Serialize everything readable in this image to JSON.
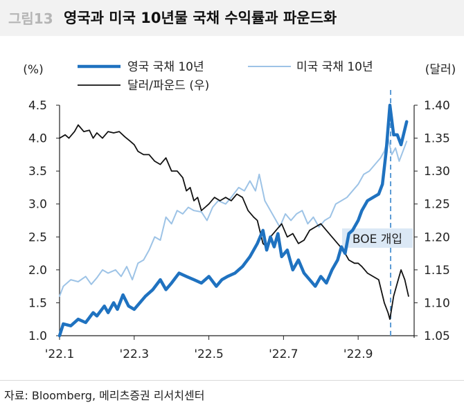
{
  "header": {
    "figure_label": "그림13",
    "title": "영국과 미국 10년물 국채 수익률과 파운드화"
  },
  "source": "자료: Bloomberg, 메리츠증권 리서치센터",
  "colors": {
    "uk": "#1f72c0",
    "us": "#9dc3e6",
    "gbp": "#111111",
    "marker": "#5b9bd5",
    "annot_bg": "#dbe8f5"
  },
  "chart_data": {
    "type": "line",
    "title": "영국과 미국 10년물 국채 수익률과 파운드화",
    "left_axis": {
      "label": "(%)",
      "range": [
        1.0,
        4.5
      ],
      "ticks": [
        "1.0",
        "1.5",
        "2.0",
        "2.5",
        "3.0",
        "3.5",
        "4.0",
        "4.5"
      ]
    },
    "right_axis": {
      "label": "(달러)",
      "range": [
        1.05,
        1.4
      ],
      "ticks": [
        "1.05",
        "1.10",
        "1.15",
        "1.20",
        "1.25",
        "1.30",
        "1.35",
        "1.40"
      ]
    },
    "x_axis": {
      "range": [
        0,
        9.5
      ],
      "ticks": [
        {
          "value": 0,
          "label": "'22.1"
        },
        {
          "value": 2,
          "label": "'22.3"
        },
        {
          "value": 4,
          "label": "'22.5"
        },
        {
          "value": 6,
          "label": "'22.7"
        },
        {
          "value": 8,
          "label": "'22.9"
        }
      ]
    },
    "annotation": {
      "label": "BOE 개입",
      "x": 8.87
    },
    "series": [
      {
        "name": "영국 국채 10년",
        "axis": "left",
        "style": "thick",
        "points": [
          [
            0,
            1.0
          ],
          [
            0.1,
            1.18
          ],
          [
            0.3,
            1.15
          ],
          [
            0.5,
            1.25
          ],
          [
            0.7,
            1.2
          ],
          [
            0.9,
            1.35
          ],
          [
            1.0,
            1.3
          ],
          [
            1.2,
            1.45
          ],
          [
            1.3,
            1.35
          ],
          [
            1.45,
            1.5
          ],
          [
            1.55,
            1.4
          ],
          [
            1.7,
            1.62
          ],
          [
            1.85,
            1.45
          ],
          [
            2.0,
            1.4
          ],
          [
            2.15,
            1.5
          ],
          [
            2.3,
            1.6
          ],
          [
            2.5,
            1.7
          ],
          [
            2.7,
            1.85
          ],
          [
            2.85,
            1.7
          ],
          [
            3.0,
            1.8
          ],
          [
            3.2,
            1.95
          ],
          [
            3.4,
            1.9
          ],
          [
            3.6,
            1.85
          ],
          [
            3.8,
            1.8
          ],
          [
            4.0,
            1.9
          ],
          [
            4.2,
            1.75
          ],
          [
            4.35,
            1.85
          ],
          [
            4.5,
            1.9
          ],
          [
            4.7,
            1.95
          ],
          [
            4.9,
            2.05
          ],
          [
            5.1,
            2.2
          ],
          [
            5.3,
            2.4
          ],
          [
            5.45,
            2.6
          ],
          [
            5.55,
            2.3
          ],
          [
            5.65,
            2.5
          ],
          [
            5.75,
            2.35
          ],
          [
            5.85,
            2.55
          ],
          [
            5.95,
            2.2
          ],
          [
            6.1,
            2.3
          ],
          [
            6.25,
            2.0
          ],
          [
            6.4,
            2.15
          ],
          [
            6.55,
            1.95
          ],
          [
            6.7,
            1.85
          ],
          [
            6.85,
            1.75
          ],
          [
            7.0,
            1.9
          ],
          [
            7.15,
            1.8
          ],
          [
            7.3,
            2.0
          ],
          [
            7.45,
            2.15
          ],
          [
            7.55,
            2.35
          ],
          [
            7.65,
            2.25
          ],
          [
            7.75,
            2.55
          ],
          [
            7.85,
            2.6
          ],
          [
            8.0,
            2.75
          ],
          [
            8.1,
            2.9
          ],
          [
            8.25,
            3.05
          ],
          [
            8.4,
            3.1
          ],
          [
            8.55,
            3.15
          ],
          [
            8.65,
            3.3
          ],
          [
            8.75,
            3.8
          ],
          [
            8.85,
            4.5
          ],
          [
            8.95,
            4.05
          ],
          [
            9.05,
            4.05
          ],
          [
            9.15,
            3.9
          ],
          [
            9.3,
            4.25
          ]
        ]
      },
      {
        "name": "미국 국채 10년",
        "axis": "left",
        "style": "thin",
        "points": [
          [
            0,
            1.6
          ],
          [
            0.1,
            1.75
          ],
          [
            0.3,
            1.85
          ],
          [
            0.5,
            1.82
          ],
          [
            0.7,
            1.9
          ],
          [
            0.85,
            1.78
          ],
          [
            1.0,
            1.88
          ],
          [
            1.15,
            2.0
          ],
          [
            1.3,
            1.95
          ],
          [
            1.5,
            2.0
          ],
          [
            1.65,
            1.9
          ],
          [
            1.8,
            2.05
          ],
          [
            1.95,
            1.85
          ],
          [
            2.1,
            2.1
          ],
          [
            2.25,
            2.15
          ],
          [
            2.4,
            2.3
          ],
          [
            2.55,
            2.5
          ],
          [
            2.7,
            2.45
          ],
          [
            2.85,
            2.8
          ],
          [
            3.0,
            2.7
          ],
          [
            3.15,
            2.9
          ],
          [
            3.3,
            2.85
          ],
          [
            3.45,
            2.95
          ],
          [
            3.6,
            2.9
          ],
          [
            3.8,
            2.88
          ],
          [
            3.95,
            2.75
          ],
          [
            4.1,
            2.95
          ],
          [
            4.25,
            3.05
          ],
          [
            4.45,
            3.0
          ],
          [
            4.6,
            3.1
          ],
          [
            4.8,
            3.25
          ],
          [
            4.95,
            3.2
          ],
          [
            5.1,
            3.35
          ],
          [
            5.25,
            3.2
          ],
          [
            5.35,
            3.45
          ],
          [
            5.5,
            3.05
          ],
          [
            5.6,
            2.95
          ],
          [
            5.75,
            2.8
          ],
          [
            5.9,
            2.65
          ],
          [
            6.05,
            2.85
          ],
          [
            6.2,
            2.75
          ],
          [
            6.35,
            2.85
          ],
          [
            6.5,
            2.9
          ],
          [
            6.65,
            2.7
          ],
          [
            6.8,
            2.8
          ],
          [
            6.95,
            2.65
          ],
          [
            7.1,
            2.75
          ],
          [
            7.25,
            2.8
          ],
          [
            7.4,
            3.0
          ],
          [
            7.55,
            3.05
          ],
          [
            7.7,
            3.1
          ],
          [
            7.85,
            3.2
          ],
          [
            8.0,
            3.3
          ],
          [
            8.15,
            3.45
          ],
          [
            8.3,
            3.5
          ],
          [
            8.45,
            3.6
          ],
          [
            8.6,
            3.7
          ],
          [
            8.7,
            3.8
          ],
          [
            8.8,
            4.0
          ],
          [
            8.9,
            3.75
          ],
          [
            9.0,
            3.85
          ],
          [
            9.1,
            3.65
          ],
          [
            9.2,
            3.8
          ],
          [
            9.3,
            3.95
          ]
        ]
      },
      {
        "name": "달러/파운드 (우)",
        "axis": "right",
        "style": "normal",
        "points": [
          [
            0,
            1.35
          ],
          [
            0.15,
            1.355
          ],
          [
            0.25,
            1.35
          ],
          [
            0.4,
            1.36
          ],
          [
            0.5,
            1.37
          ],
          [
            0.65,
            1.36
          ],
          [
            0.8,
            1.362
          ],
          [
            0.9,
            1.35
          ],
          [
            1.0,
            1.358
          ],
          [
            1.15,
            1.35
          ],
          [
            1.3,
            1.36
          ],
          [
            1.45,
            1.358
          ],
          [
            1.6,
            1.36
          ],
          [
            1.75,
            1.352
          ],
          [
            1.9,
            1.345
          ],
          [
            2.0,
            1.34
          ],
          [
            2.1,
            1.33
          ],
          [
            2.25,
            1.325
          ],
          [
            2.4,
            1.325
          ],
          [
            2.55,
            1.315
          ],
          [
            2.7,
            1.31
          ],
          [
            2.85,
            1.32
          ],
          [
            3.0,
            1.3
          ],
          [
            3.15,
            1.3
          ],
          [
            3.3,
            1.29
          ],
          [
            3.4,
            1.27
          ],
          [
            3.5,
            1.275
          ],
          [
            3.6,
            1.255
          ],
          [
            3.7,
            1.26
          ],
          [
            3.8,
            1.24
          ],
          [
            3.9,
            1.245
          ],
          [
            4.0,
            1.25
          ],
          [
            4.15,
            1.26
          ],
          [
            4.3,
            1.255
          ],
          [
            4.45,
            1.26
          ],
          [
            4.6,
            1.255
          ],
          [
            4.75,
            1.265
          ],
          [
            4.9,
            1.26
          ],
          [
            5.05,
            1.24
          ],
          [
            5.2,
            1.23
          ],
          [
            5.3,
            1.225
          ],
          [
            5.45,
            1.19
          ],
          [
            5.55,
            1.185
          ],
          [
            5.65,
            1.2
          ],
          [
            5.8,
            1.21
          ],
          [
            5.95,
            1.22
          ],
          [
            6.1,
            1.2
          ],
          [
            6.25,
            1.205
          ],
          [
            6.4,
            1.19
          ],
          [
            6.55,
            1.195
          ],
          [
            6.7,
            1.21
          ],
          [
            6.85,
            1.215
          ],
          [
            7.0,
            1.22
          ],
          [
            7.15,
            1.21
          ],
          [
            7.3,
            1.2
          ],
          [
            7.45,
            1.19
          ],
          [
            7.6,
            1.18
          ],
          [
            7.75,
            1.165
          ],
          [
            7.9,
            1.16
          ],
          [
            8.0,
            1.16
          ],
          [
            8.1,
            1.155
          ],
          [
            8.25,
            1.145
          ],
          [
            8.4,
            1.14
          ],
          [
            8.55,
            1.135
          ],
          [
            8.7,
            1.1
          ],
          [
            8.8,
            1.085
          ],
          [
            8.85,
            1.075
          ],
          [
            8.95,
            1.11
          ],
          [
            9.05,
            1.13
          ],
          [
            9.15,
            1.15
          ],
          [
            9.25,
            1.135
          ],
          [
            9.35,
            1.11
          ]
        ]
      }
    ]
  }
}
